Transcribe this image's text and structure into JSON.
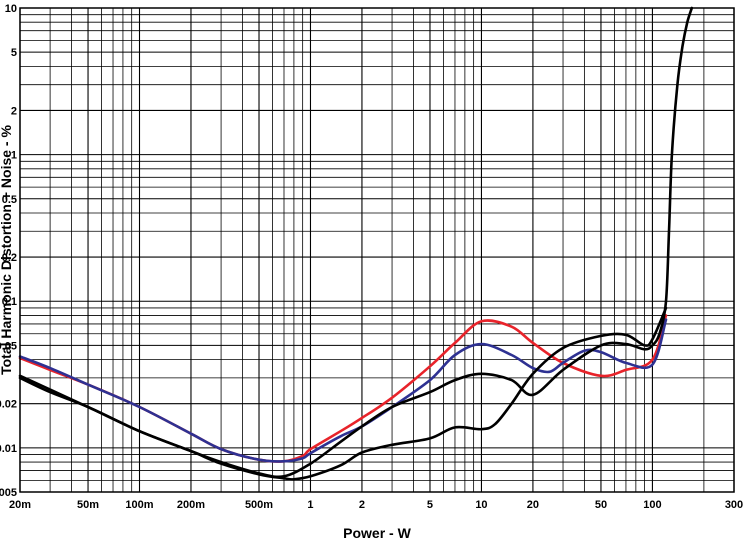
{
  "chart_data": {
    "type": "line",
    "xlabel": "Power - W",
    "ylabel": "Total Harmonic Distortion + Noise - %",
    "x_scale": "log",
    "y_scale": "log",
    "xlim": [
      0.02,
      300
    ],
    "ylim": [
      0.005,
      10
    ],
    "grid": true,
    "x_ticks": [
      {
        "value": 0.02,
        "label": "20m"
      },
      {
        "value": 0.05,
        "label": "50m"
      },
      {
        "value": 0.1,
        "label": "100m"
      },
      {
        "value": 0.2,
        "label": "200m"
      },
      {
        "value": 0.5,
        "label": "500m"
      },
      {
        "value": 1,
        "label": "1"
      },
      {
        "value": 2,
        "label": "2"
      },
      {
        "value": 5,
        "label": "5"
      },
      {
        "value": 10,
        "label": "10"
      },
      {
        "value": 20,
        "label": "20"
      },
      {
        "value": 50,
        "label": "50"
      },
      {
        "value": 100,
        "label": "100"
      },
      {
        "value": 300,
        "label": "300"
      }
    ],
    "y_ticks": [
      {
        "value": 0.005,
        "label": "0.005"
      },
      {
        "value": 0.01,
        "label": "0.01"
      },
      {
        "value": 0.02,
        "label": "0.02"
      },
      {
        "value": 0.05,
        "label": "0.05"
      },
      {
        "value": 0.1,
        "label": "0.1"
      },
      {
        "value": 0.2,
        "label": "0.2"
      },
      {
        "value": 0.5,
        "label": "0.5"
      },
      {
        "value": 1,
        "label": "1"
      },
      {
        "value": 2,
        "label": "2"
      },
      {
        "value": 5,
        "label": "5"
      },
      {
        "value": 10,
        "label": "10"
      }
    ],
    "series": [
      {
        "color": "#e8232a",
        "x": [
          0.02,
          0.03,
          0.05,
          0.1,
          0.2,
          0.3,
          0.5,
          0.7,
          0.9,
          1.0,
          1.5,
          2,
          3,
          5,
          7,
          10,
          15,
          20,
          30,
          50,
          70,
          100,
          120
        ],
        "y": [
          0.041,
          0.034,
          0.027,
          0.019,
          0.0125,
          0.0098,
          0.0083,
          0.0081,
          0.0088,
          0.0098,
          0.013,
          0.016,
          0.022,
          0.036,
          0.052,
          0.073,
          0.067,
          0.052,
          0.038,
          0.031,
          0.034,
          0.04,
          0.08
        ]
      },
      {
        "color": "#2e3192",
        "x": [
          0.02,
          0.03,
          0.05,
          0.1,
          0.2,
          0.3,
          0.5,
          0.7,
          0.9,
          1.0,
          1.5,
          2,
          3,
          5,
          7,
          10,
          15,
          20,
          25,
          30,
          40,
          50,
          70,
          100,
          120
        ],
        "y": [
          0.042,
          0.035,
          0.027,
          0.019,
          0.0125,
          0.0098,
          0.0083,
          0.0081,
          0.0085,
          0.0092,
          0.012,
          0.014,
          0.019,
          0.029,
          0.043,
          0.051,
          0.043,
          0.035,
          0.033,
          0.038,
          0.046,
          0.045,
          0.038,
          0.037,
          0.075
        ]
      },
      {
        "color": "#000000",
        "x": [
          0.02,
          0.03,
          0.05,
          0.1,
          0.2,
          0.3,
          0.5,
          0.7,
          1.0,
          1.5,
          2,
          3,
          5,
          7,
          10,
          15,
          20,
          30,
          50,
          70,
          90,
          100,
          110,
          120,
          125,
          130,
          140,
          150,
          160,
          170
        ],
        "y": [
          0.03,
          0.024,
          0.019,
          0.013,
          0.0095,
          0.008,
          0.0067,
          0.0064,
          0.0078,
          0.011,
          0.014,
          0.019,
          0.024,
          0.029,
          0.032,
          0.029,
          0.023,
          0.034,
          0.05,
          0.051,
          0.047,
          0.05,
          0.06,
          0.1,
          0.3,
          1.0,
          3.0,
          5.5,
          8.0,
          10.0
        ]
      },
      {
        "color": "#000000",
        "x": [
          0.02,
          0.03,
          0.05,
          0.1,
          0.2,
          0.3,
          0.5,
          0.7,
          0.8,
          1.0,
          1.5,
          2,
          3,
          5,
          7,
          10,
          12,
          15,
          20,
          30,
          50,
          70,
          90,
          100,
          120
        ],
        "y": [
          0.031,
          0.025,
          0.019,
          0.013,
          0.0095,
          0.0078,
          0.0066,
          0.0062,
          0.0061,
          0.0064,
          0.0076,
          0.0093,
          0.0105,
          0.0116,
          0.0138,
          0.0134,
          0.0145,
          0.02,
          0.032,
          0.048,
          0.058,
          0.059,
          0.05,
          0.055,
          0.09
        ]
      }
    ]
  }
}
